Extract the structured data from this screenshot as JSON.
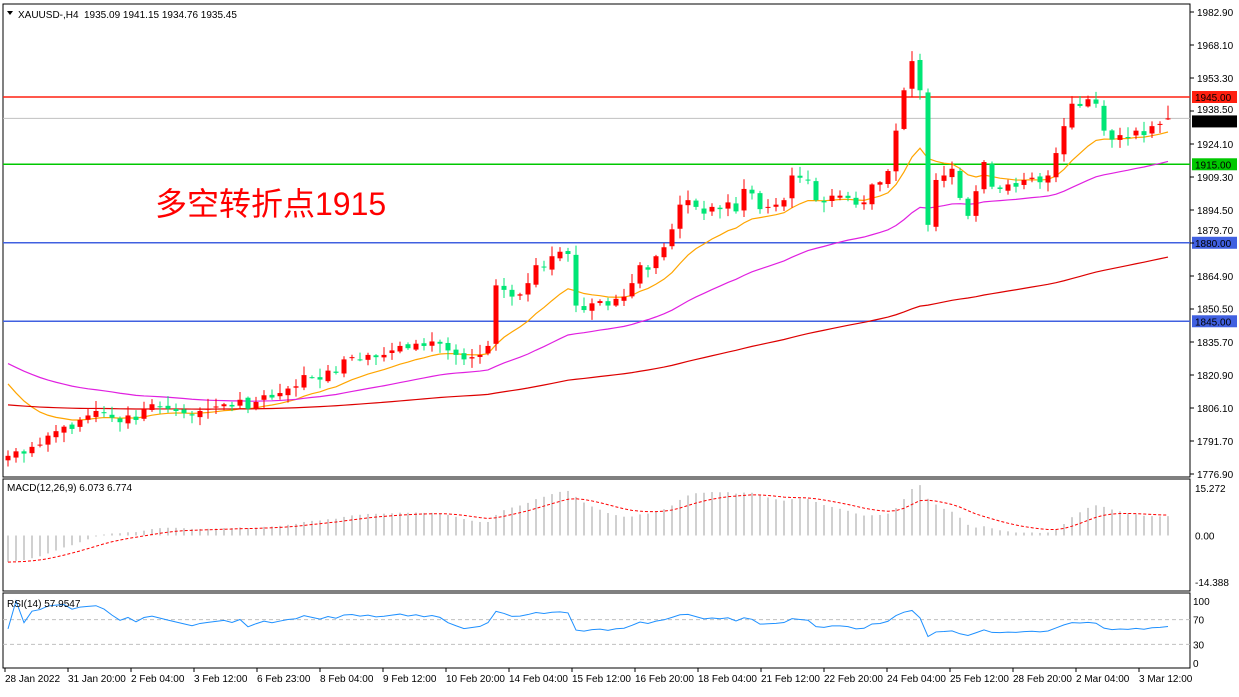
{
  "header": {
    "symbol": "XAUUSD-,H4",
    "ohlc": "1935.09 1941.15 1934.76 1935.45"
  },
  "annotation": "多空转折点1915",
  "colors": {
    "bull": "#ff0000",
    "bear": "#00e676",
    "ma_fast": "#ffa500",
    "ma_mid": "#e020e0",
    "ma_slow": "#dd0000",
    "macd_hist": "#c0c0c0",
    "macd_signal": "#ff0000",
    "rsi": "#1e90ff"
  },
  "chart_data": [
    {
      "type": "candlestick",
      "title": "XAUUSD-,H4",
      "ylim": [
        1776.9,
        1982.9
      ],
      "y_ticks": [
        "1982.90",
        "1968.10",
        "1953.30",
        "1938.50",
        "1924.10",
        "1909.30",
        "1894.50",
        "1879.70",
        "1864.90",
        "1850.50",
        "1835.70",
        "1820.90",
        "1806.10",
        "1791.70",
        "1776.90"
      ],
      "x_ticks": [
        "28 Jan 2022",
        "31 Jan 20:00",
        "2 Feb 04:00",
        "3 Feb 12:00",
        "6 Feb 23:00",
        "8 Feb 04:00",
        "9 Feb 12:00",
        "10 Feb 20:00",
        "14 Feb 04:00",
        "15 Feb 12:00",
        "16 Feb 20:00",
        "18 Feb 04:00",
        "21 Feb 12:00",
        "22 Feb 20:00",
        "24 Feb 04:00",
        "25 Feb 12:00",
        "28 Feb 20:00",
        "2 Mar 04:00",
        "3 Mar 12:00"
      ],
      "last_bar": {
        "open": 1935.09,
        "high": 1941.15,
        "low": 1934.76,
        "close": 1935.45
      },
      "closes": [
        1785,
        1787,
        1786,
        1789,
        1790,
        1794,
        1796,
        1798,
        1797,
        1801,
        1803,
        1805,
        1804,
        1802,
        1800,
        1803,
        1801,
        1806,
        1808,
        1807,
        1806,
        1805,
        1804,
        1803,
        1805,
        1806,
        1807,
        1808,
        1807,
        1810,
        1806,
        1809,
        1812,
        1811,
        1813,
        1815,
        1816,
        1821,
        1820,
        1819,
        1823,
        1822,
        1828,
        1829,
        1828,
        1830,
        1829,
        1830,
        1832,
        1834,
        1833,
        1835,
        1834,
        1836,
        1835,
        1832,
        1830,
        1828,
        1829,
        1830,
        1834,
        1861,
        1859,
        1856,
        1857,
        1862,
        1870,
        1869,
        1874,
        1876,
        1875,
        1852,
        1850,
        1853,
        1854,
        1852,
        1855,
        1856,
        1862,
        1870,
        1868,
        1874,
        1878,
        1886,
        1897,
        1899,
        1896,
        1893,
        1896,
        1895,
        1898,
        1894,
        1904,
        1902,
        1895,
        1896,
        1897,
        1899,
        1910,
        1909,
        1908,
        1899,
        1898,
        1901,
        1901,
        1900,
        1897,
        1898,
        1906,
        1907,
        1912,
        1930,
        1948,
        1961,
        1948,
        1888,
        1908,
        1910,
        1913,
        1900,
        1892,
        1903,
        1916,
        1905,
        1904,
        1906,
        1905,
        1908,
        1909,
        1907,
        1910,
        1920,
        1932,
        1942,
        1941,
        1944,
        1942,
        1930,
        1926,
        1928,
        1927,
        1930,
        1928,
        1932,
        1933,
        1935.45
      ],
      "levels": [
        {
          "price": 1945.0,
          "label": "1945.00",
          "color": "#ff2010"
        },
        {
          "price": 1935.45,
          "label": "1935.45",
          "color": "#000000",
          "line": "#c0c0c0"
        },
        {
          "price": 1915.0,
          "label": "1915.00",
          "color": "#00c800"
        },
        {
          "price": 1880.0,
          "label": "1880.00",
          "color": "#4060e0"
        },
        {
          "price": 1845.0,
          "label": "1845.00",
          "color": "#4060e0"
        }
      ]
    },
    {
      "type": "bar+line",
      "title": "MACD(12,26,9) 6.073 6.774",
      "ylim": [
        -14.388,
        15.272
      ],
      "y_ticks": [
        "15.272",
        "0.00",
        "-14.388"
      ],
      "macd": 6.073,
      "signal": 6.774
    },
    {
      "type": "line",
      "title": "RSI(14) 57.9547",
      "ylim": [
        0,
        100
      ],
      "y_ticks": [
        "100",
        "70",
        "30",
        "0"
      ],
      "levels": [
        70,
        30
      ],
      "value": 57.9547
    }
  ]
}
